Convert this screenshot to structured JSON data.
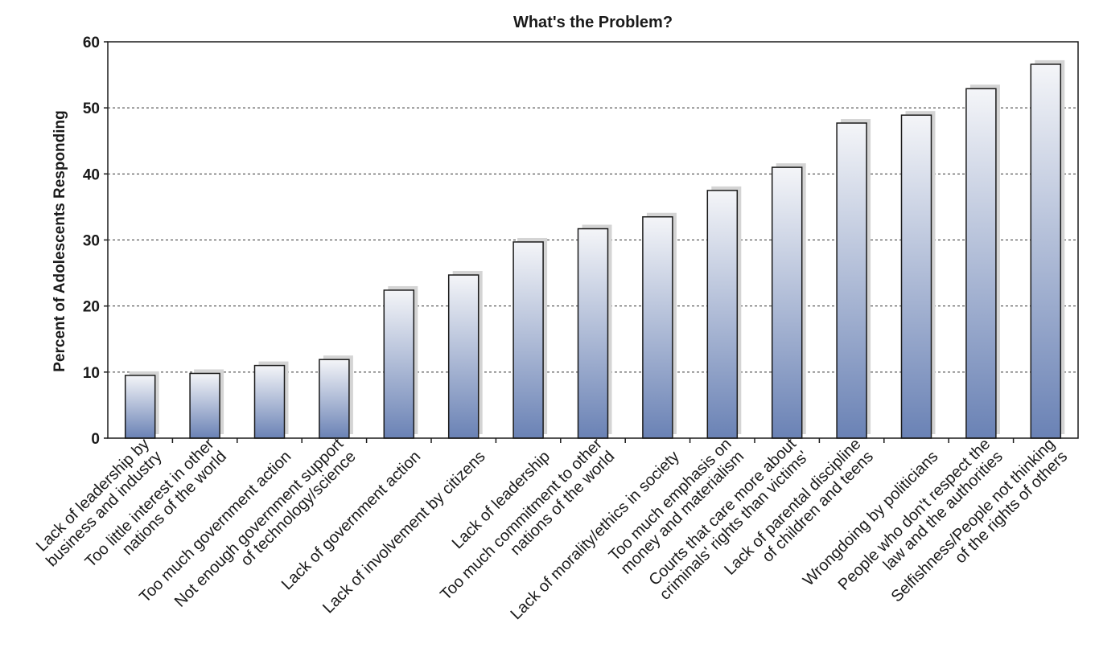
{
  "chart_data": {
    "type": "bar",
    "title": "What's the Problem?",
    "xlabel": "",
    "ylabel": "Percent of Adolescents Responding",
    "ylim": [
      0,
      60
    ],
    "yticks": [
      0,
      10,
      20,
      30,
      40,
      50,
      60
    ],
    "grid": "horizontal dotted",
    "legend": "none",
    "categories": [
      [
        "Lack of leadership by",
        "business and industry"
      ],
      [
        "Too little interest in other",
        "nations of the world"
      ],
      [
        "Too much government action"
      ],
      [
        "Not enough government support",
        "of technology/science"
      ],
      [
        "Lack of government action"
      ],
      [
        "Lack of involvement by citizens"
      ],
      [
        "Lack of leadership"
      ],
      [
        "Too much commitment to other",
        "nations of the world"
      ],
      [
        "Lack of morality/ethics in society"
      ],
      [
        "Too much emphasis on",
        "money and materialism"
      ],
      [
        "Courts that care more about",
        "criminals' rights than victims'"
      ],
      [
        "Lack of parental discipline",
        "of children and teens"
      ],
      [
        "Wrongdoing by politicians"
      ],
      [
        "People who don't respect the",
        "law and the authorities"
      ],
      [
        "Selfishness/People not thinking",
        "of the rights of others"
      ]
    ],
    "values": [
      9.5,
      9.8,
      11,
      11.9,
      22.4,
      24.7,
      29.7,
      31.7,
      33.5,
      37.5,
      41,
      47.7,
      48.9,
      52.9,
      56.6
    ],
    "colors": {
      "bar_top": "#f4f5f8",
      "bar_bottom": "#6a82b5",
      "shadow": "#d4d4d4",
      "grid": "#333333"
    }
  }
}
